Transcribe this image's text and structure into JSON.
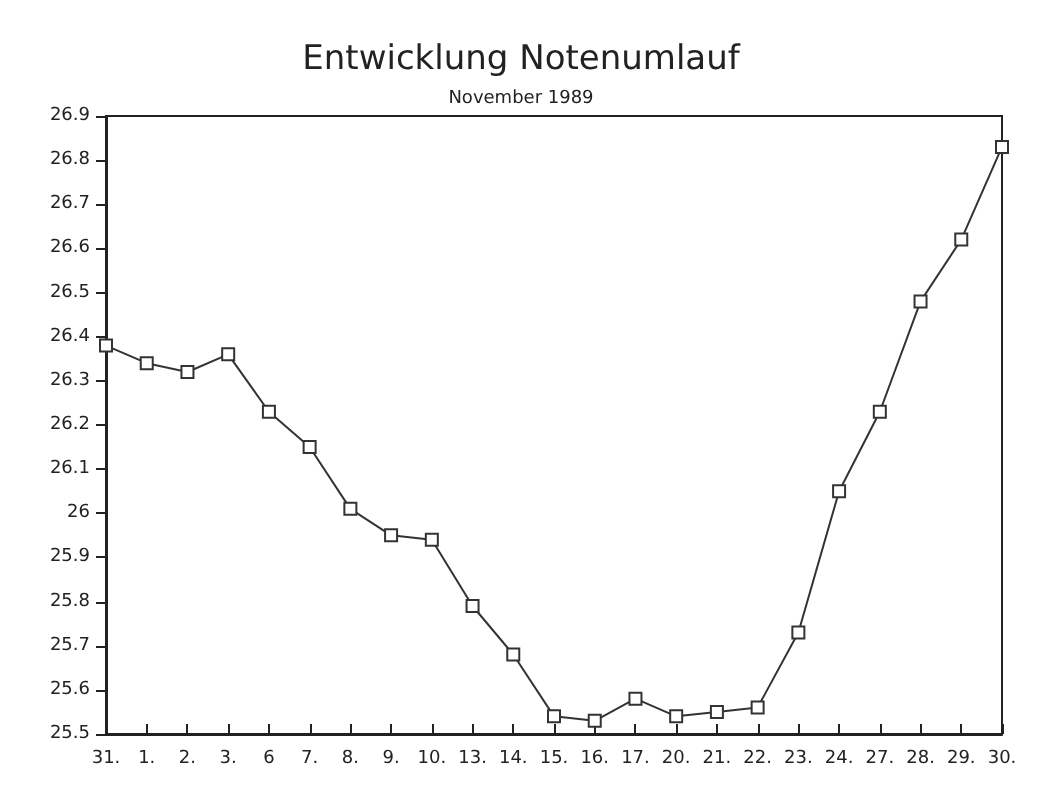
{
  "chart_data": {
    "type": "line",
    "title": "Entwicklung Notenumlauf",
    "subtitle": "November 1989",
    "categories": [
      "31.",
      "1.",
      "2.",
      "3.",
      "6",
      "7.",
      "8.",
      "9.",
      "10.",
      "13.",
      "14.",
      "15.",
      "16.",
      "17.",
      "20.",
      "21.",
      "22.",
      "23.",
      "24.",
      "27.",
      "28.",
      "29.",
      "30."
    ],
    "series": [
      {
        "color": "#333333",
        "values": [
          26.38,
          26.34,
          26.32,
          26.36,
          26.23,
          26.15,
          26.01,
          25.95,
          25.94,
          25.79,
          25.68,
          25.54,
          25.53,
          25.58,
          25.54,
          25.55,
          25.56,
          25.73,
          26.05,
          26.23,
          26.48,
          26.62,
          26.83
        ]
      }
    ],
    "ylim": [
      25.5,
      26.9
    ],
    "yticks": [
      25.5,
      25.6,
      25.7,
      25.8,
      25.9,
      26,
      26.1,
      26.2,
      26.3,
      26.4,
      26.5,
      26.6,
      26.7,
      26.8,
      26.9
    ],
    "grid": false,
    "marker": "square",
    "line_style": "solid"
  }
}
